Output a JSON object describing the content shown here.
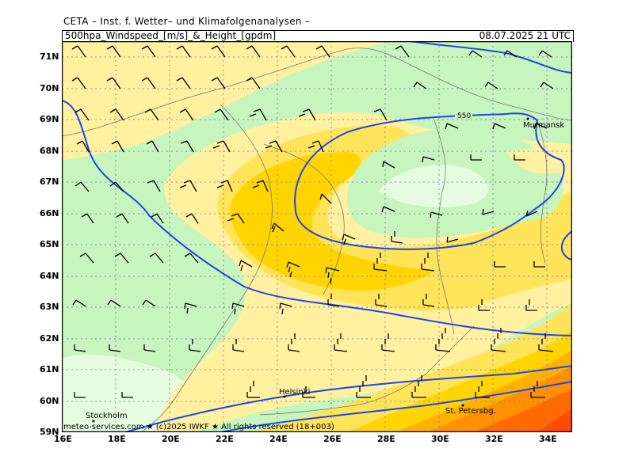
{
  "header": {
    "title": "CETA – Inst. f. Wetter– und Klimafolgenanalysen –",
    "parameter": "500hpa_Windspeed_[m/s]_&_Height_[gpdm]",
    "valid_time": "08.07.2025 21 UTC"
  },
  "footer": {
    "text": "meteo-services.com ★ (c)2025 IWKF ★ All rights reserved (18+003)"
  },
  "axes": {
    "lat_labels": [
      "71N",
      "70N",
      "69N",
      "68N",
      "67N",
      "66N",
      "65N",
      "64N",
      "63N",
      "62N",
      "61N",
      "60N",
      "59N"
    ],
    "lon_labels": [
      "16E",
      "18E",
      "20E",
      "22E",
      "24E",
      "26E",
      "28E",
      "30E",
      "32E",
      "34E"
    ]
  },
  "places": {
    "murmansk": "Murmansk",
    "helsinki": "Helsinki",
    "stockholm": "Stockholm",
    "st_petersburg": "St. Petersbg."
  },
  "contours": {
    "label_550": "550"
  },
  "colors": {
    "light_green": "#e6fce0",
    "green": "#c6f5bd",
    "pale_yellow": "#fff1a0",
    "yellow": "#ffe45a",
    "gold": "#ffd400",
    "orange_light": "#ffb000",
    "orange": "#ff9000",
    "dark_orange": "#ff6a00",
    "red_orange": "#ff4a00",
    "contour_blue": "#1e46e6"
  }
}
